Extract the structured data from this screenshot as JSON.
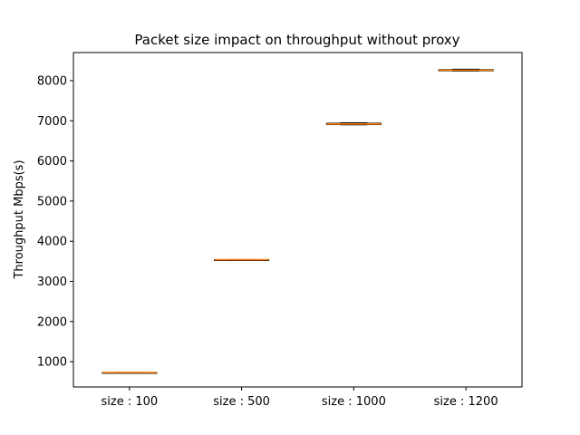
{
  "chart_data": {
    "type": "box",
    "title": "Packet size impact on throughput without proxy",
    "xlabel": "",
    "ylabel": "Throughput Mbps(s)",
    "categories": [
      "size : 100",
      "size : 500",
      "size : 1000",
      "size : 1200"
    ],
    "boxes": [
      {
        "category": "size : 100",
        "whisker_low": 725,
        "q1": 728,
        "median": 730,
        "q3": 732,
        "whisker_high": 735
      },
      {
        "category": "size : 500",
        "whisker_low": 3535,
        "q1": 3538,
        "median": 3540,
        "q3": 3542,
        "whisker_high": 3545
      },
      {
        "category": "size : 1000",
        "whisker_low": 6900,
        "q1": 6905,
        "median": 6920,
        "q3": 6940,
        "whisker_high": 6950
      },
      {
        "category": "size : 1200",
        "whisker_low": 8240,
        "q1": 8245,
        "median": 8260,
        "q3": 8275,
        "whisker_high": 8285
      }
    ],
    "ylim": [
      370,
      8700
    ],
    "yticks": [
      1000,
      2000,
      3000,
      4000,
      5000,
      6000,
      7000,
      8000
    ],
    "ytick_labels": [
      "1000",
      "2000",
      "3000",
      "4000",
      "5000",
      "6000",
      "7000",
      "8000"
    ],
    "grid": false,
    "colors": {
      "median": "#ff7f0e",
      "box": "#000000"
    }
  }
}
